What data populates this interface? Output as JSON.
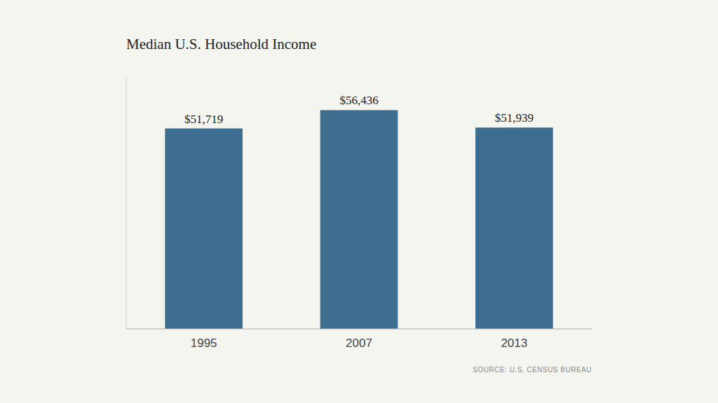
{
  "chart_data": {
    "type": "bar",
    "title": "Median U.S. Household Income",
    "categories": [
      "1995",
      "2007",
      "2013"
    ],
    "values": [
      51719,
      56436,
      51939
    ],
    "value_labels": [
      "$51,719",
      "$56,436",
      "$51,939"
    ],
    "color": "#3d6e8f",
    "ylim": [
      0,
      65000
    ],
    "data_labels": true,
    "tick_labels": "x",
    "grid": false,
    "annotations": [
      "SOURCE: U.S. CENSUS BUREAU"
    ]
  }
}
